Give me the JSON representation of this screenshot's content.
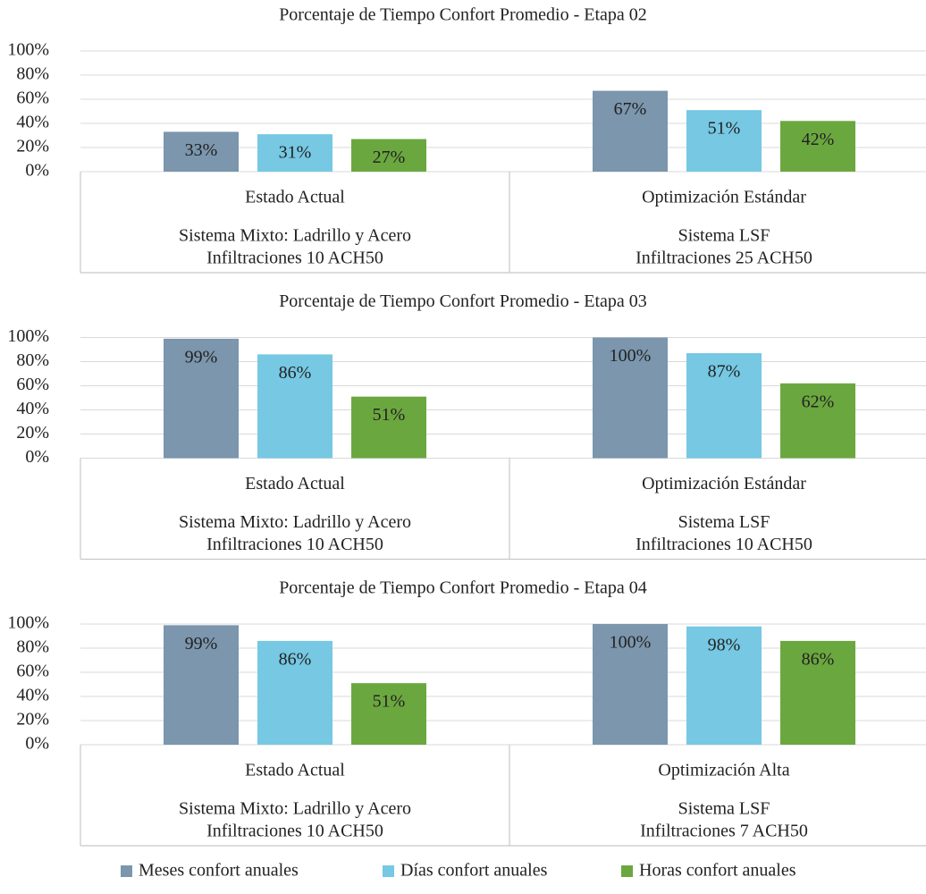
{
  "chart_data": [
    {
      "type": "bar",
      "title": "Porcentaje de Tiempo Confort Promedio - Etapa 02",
      "categories": [
        [
          "Estado Actual",
          "Sistema Mixto: Ladrillo y Acero",
          "Infiltraciones 10 ACH50"
        ],
        [
          "Optimización Estándar",
          "Sistema LSF",
          "Infiltraciones 25 ACH50"
        ]
      ],
      "series": [
        {
          "values": [
            33,
            67
          ],
          "value_labels": [
            "33%",
            "67%"
          ]
        },
        {
          "values": [
            31,
            51
          ],
          "value_labels": [
            "31%",
            "51%"
          ]
        },
        {
          "values": [
            27,
            42
          ],
          "value_labels": [
            "27%",
            "42%"
          ]
        }
      ],
      "ylim": [
        0,
        100
      ],
      "yticks": [
        {
          "value": 0,
          "label": "0%"
        },
        {
          "value": 20,
          "label": "20%"
        },
        {
          "value": 40,
          "label": "40%"
        },
        {
          "value": 60,
          "label": "60%"
        },
        {
          "value": 80,
          "label": "80%"
        },
        {
          "value": 100,
          "label": "100%"
        }
      ],
      "grid": true
    },
    {
      "type": "bar",
      "title": "Porcentaje de Tiempo Confort Promedio - Etapa 03",
      "categories": [
        [
          "Estado Actual",
          "Sistema Mixto: Ladrillo y Acero",
          "Infiltraciones 10 ACH50"
        ],
        [
          "Optimización Estándar",
          "Sistema LSF",
          "Infiltraciones 10 ACH50"
        ]
      ],
      "series": [
        {
          "values": [
            99,
            100
          ],
          "value_labels": [
            "99%",
            "100%"
          ]
        },
        {
          "values": [
            86,
            87
          ],
          "value_labels": [
            "86%",
            "87%"
          ]
        },
        {
          "values": [
            51,
            62
          ],
          "value_labels": [
            "51%",
            "62%"
          ]
        }
      ],
      "ylim": [
        0,
        100
      ],
      "yticks": [
        {
          "value": 0,
          "label": "0%"
        },
        {
          "value": 20,
          "label": "20%"
        },
        {
          "value": 40,
          "label": "40%"
        },
        {
          "value": 60,
          "label": "60%"
        },
        {
          "value": 80,
          "label": "80%"
        },
        {
          "value": 100,
          "label": "100%"
        }
      ],
      "grid": true
    },
    {
      "type": "bar",
      "title": "Porcentaje de Tiempo Confort Promedio - Etapa 04",
      "categories": [
        [
          "Estado Actual",
          "Sistema Mixto: Ladrillo y Acero",
          "Infiltraciones 10 ACH50"
        ],
        [
          "Optimización Alta",
          "Sistema LSF",
          "Infiltraciones 7 ACH50"
        ]
      ],
      "series": [
        {
          "values": [
            99,
            100
          ],
          "value_labels": [
            "99%",
            "100%"
          ]
        },
        {
          "values": [
            86,
            98
          ],
          "value_labels": [
            "86%",
            "98%"
          ]
        },
        {
          "values": [
            51,
            86
          ],
          "value_labels": [
            "51%",
            "86%"
          ]
        }
      ],
      "ylim": [
        0,
        100
      ],
      "yticks": [
        {
          "value": 0,
          "label": "0%"
        },
        {
          "value": 20,
          "label": "20%"
        },
        {
          "value": 40,
          "label": "40%"
        },
        {
          "value": 60,
          "label": "60%"
        },
        {
          "value": 80,
          "label": "80%"
        },
        {
          "value": 100,
          "label": "100%"
        }
      ],
      "grid": true
    }
  ],
  "legend": {
    "position": "bottom",
    "items": [
      {
        "name": "Meses confort anuales",
        "color": "#7b96ad"
      },
      {
        "name": "Días confort anuales",
        "color": "#76c8e3"
      },
      {
        "name": "Horas confort anuales",
        "color": "#6ba73f"
      }
    ]
  }
}
